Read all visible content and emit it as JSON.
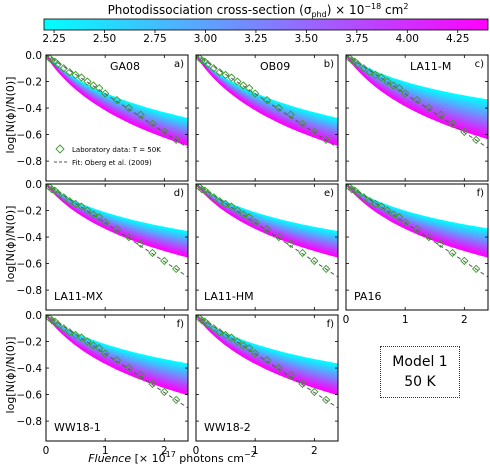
{
  "colorbar": {
    "label_text": "Photodissociation cross-section (σ",
    "label_sub": "phd",
    "label_rest": ") × 10",
    "label_exp": "−18",
    "label_unit": " cm",
    "label_unit_exp": "2",
    "ticks": [
      "2.25",
      "2.50",
      "2.75",
      "3.00",
      "3.25",
      "3.50",
      "3.75",
      "4.00",
      "4.25"
    ],
    "tick_values": [
      2.25,
      2.5,
      2.75,
      3.0,
      3.25,
      3.5,
      3.75,
      4.0,
      4.25
    ],
    "range": [
      2.2,
      4.4
    ],
    "color_low": "#00ffff",
    "color_high": "#ff00ff"
  },
  "axes": {
    "ylabel": "log[N(ϕ)/N(0)]",
    "xlabel_italic": "Fluence",
    "xlabel_rest": " [× 10",
    "xlabel_exp": "17",
    "xlabel_unit": " photons cm",
    "xlabel_unit_exp": "−2",
    "xticks": [
      "0",
      "1",
      "2"
    ],
    "yticks": [
      "0.0",
      "−0.2",
      "−0.4",
      "−0.6",
      "−0.8"
    ]
  },
  "legend": {
    "lab": "Laboratory data: T = 50K",
    "fit": "Fit: Oberg et al. (2009)"
  },
  "model_box": {
    "line1": "Model 1",
    "line2": "50 K"
  },
  "chart_data": {
    "type": "line",
    "xlim": [
      0,
      2.4
    ],
    "ylim": [
      -0.95,
      0.0
    ],
    "grid": false,
    "fit_slope": -0.292,
    "lab_data": {
      "x": [
        0.0,
        0.05,
        0.1,
        0.15,
        0.2,
        0.3,
        0.4,
        0.5,
        0.6,
        0.7,
        0.8,
        0.9,
        1.0,
        1.2,
        1.4,
        1.6,
        1.8,
        2.0,
        2.2
      ],
      "y": [
        0.0,
        -0.02,
        -0.04,
        -0.05,
        -0.07,
        -0.1,
        -0.13,
        -0.15,
        -0.17,
        -0.2,
        -0.23,
        -0.25,
        -0.29,
        -0.34,
        -0.4,
        -0.45,
        -0.52,
        -0.58,
        -0.64
      ]
    },
    "panels": [
      {
        "label": "a)",
        "name": "GA08",
        "name_pos": "top",
        "final_range": [
          -0.48,
          -0.68
        ]
      },
      {
        "label": "b)",
        "name": "OB09",
        "name_pos": "top",
        "final_range": [
          -0.48,
          -0.68
        ]
      },
      {
        "label": "c)",
        "name": "LA11-M",
        "name_pos": "top",
        "final_range": [
          -0.34,
          -0.63
        ]
      },
      {
        "label": "d)",
        "name": "LA11-MX",
        "name_pos": "bottom",
        "final_range": [
          -0.36,
          -0.55
        ]
      },
      {
        "label": "e)",
        "name": "LA11-HM",
        "name_pos": "bottom",
        "final_range": [
          -0.36,
          -0.55
        ]
      },
      {
        "label": "f)",
        "name": "PA16",
        "name_pos": "bottom",
        "final_range": [
          -0.34,
          -0.55
        ]
      },
      {
        "label": "f)",
        "name": "WW18-1",
        "name_pos": "bottom",
        "final_range": [
          -0.37,
          -0.6
        ]
      },
      {
        "label": "f)",
        "name": "WW18-2",
        "name_pos": "bottom",
        "final_range": [
          -0.37,
          -0.6
        ]
      }
    ]
  }
}
